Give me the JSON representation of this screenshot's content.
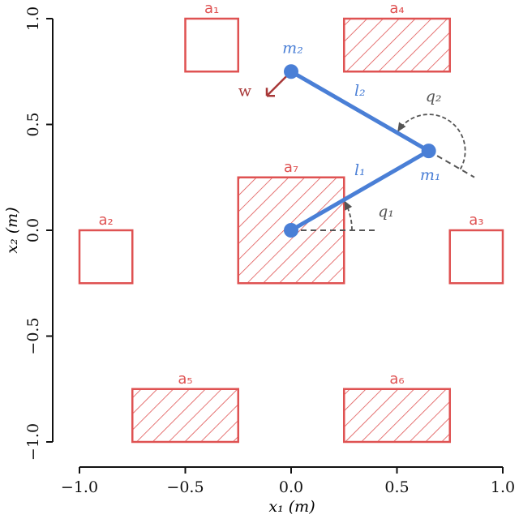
{
  "chart_data": {
    "type": "schematic",
    "xlabel": "x₁ (m)",
    "ylabel": "x₂ (m)",
    "xlim": [
      -1,
      1
    ],
    "ylim": [
      -1,
      1
    ],
    "xticks": [
      {
        "value": -1,
        "label": "−1.0"
      },
      {
        "value": -0.5,
        "label": "−0.5"
      },
      {
        "value": 0,
        "label": "0.0"
      },
      {
        "value": 0.5,
        "label": "0.5"
      },
      {
        "value": 1,
        "label": "1.0"
      }
    ],
    "yticks": [
      {
        "value": -1,
        "label": "−1.0"
      },
      {
        "value": -0.5,
        "label": "−0.5"
      },
      {
        "value": 0,
        "label": "0.0"
      },
      {
        "value": 0.5,
        "label": "0.5"
      },
      {
        "value": 1,
        "label": "1.0"
      }
    ],
    "region_color": "#df5252",
    "regions": [
      {
        "label": "a₁",
        "x": [
          -0.5,
          -0.25
        ],
        "y": [
          0.75,
          1
        ],
        "hatched": false
      },
      {
        "label": "a₂",
        "x": [
          -1,
          -0.75
        ],
        "y": [
          -0.25,
          0
        ],
        "hatched": false
      },
      {
        "label": "a₃",
        "x": [
          0.75,
          1
        ],
        "y": [
          -0.25,
          0
        ],
        "hatched": false
      },
      {
        "label": "a₄",
        "x": [
          0.25,
          0.75
        ],
        "y": [
          0.75,
          1
        ],
        "hatched": true
      },
      {
        "label": "a₅",
        "x": [
          -0.75,
          -0.25
        ],
        "y": [
          -1,
          -0.75
        ],
        "hatched": true
      },
      {
        "label": "a₆",
        "x": [
          0.25,
          0.75
        ],
        "y": [
          -1,
          -0.75
        ],
        "hatched": true
      },
      {
        "label": "a₇",
        "x": [
          -0.25,
          0.25
        ],
        "y": [
          -0.25,
          0.25
        ],
        "hatched": true
      }
    ],
    "arm_color": "#4a7fd6",
    "joints": {
      "x": [
        0,
        0.65,
        0
      ],
      "y": [
        0,
        0.375,
        0.75
      ],
      "labels": [
        null,
        "m₁",
        "m₂"
      ]
    },
    "links": [
      "l₁",
      "l₂"
    ],
    "angles": [
      "q₁",
      "q₂"
    ],
    "force": "w",
    "force_color": "#a83838"
  }
}
